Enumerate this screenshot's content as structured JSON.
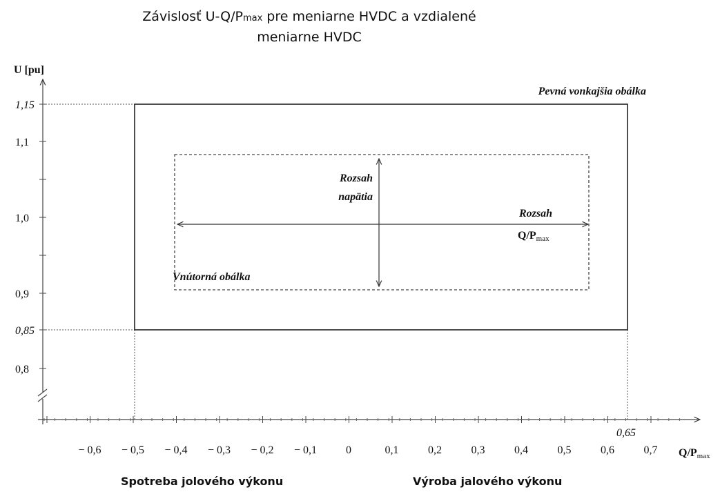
{
  "title": {
    "line1_start": "Závislosť U-Q/P",
    "line1_sub": "max",
    "line1_end": " pre meniarne HVDC a  vzdialené",
    "line2": "meniarne HVDC"
  },
  "y_axis": {
    "label": "U [pu]",
    "ticks": [
      "1,15",
      "1,1",
      "1,0",
      "0,9",
      "0,85",
      "0,8"
    ]
  },
  "x_axis": {
    "label": "Q/P",
    "label_sub": "max",
    "marker": "0,65",
    "ticks": [
      "− 0,6",
      "− 0,5",
      "− 0,4",
      "− 0,3",
      "− 0,2",
      "− 0,1",
      "0",
      "0,1",
      "0,2",
      "0,3",
      "0,4",
      "0,5",
      "0,6",
      "0,7"
    ]
  },
  "annotations": {
    "outer": "Pevná vonkajšia obálka",
    "inner": "Vnútorná obálka",
    "voltage_range_1": "Rozsah",
    "voltage_range_2": "napätia",
    "q_range_1": "Rozsah",
    "q_range_2": "Q/P",
    "q_range_sub": "max"
  },
  "footer": {
    "left": "Spotreba jolového výkonu",
    "right": "Výroba jalového výkonu"
  }
}
